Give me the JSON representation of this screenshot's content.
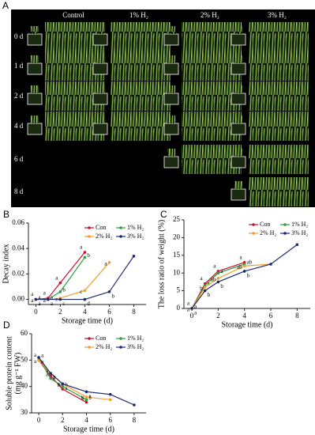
{
  "panel_labels": [
    "A",
    "B",
    "C",
    "D"
  ],
  "photo_grid": {
    "columns": [
      "Control",
      "1% H₂",
      "2% H₂",
      "3% H₂"
    ],
    "rows": [
      {
        "label": "0 d",
        "photos": [
          true,
          true,
          true,
          true
        ]
      },
      {
        "label": "1 d",
        "photos": [
          true,
          true,
          true,
          true
        ]
      },
      {
        "label": "2 d",
        "photos": [
          true,
          true,
          true,
          true
        ]
      },
      {
        "label": "4 d",
        "photos": [
          true,
          true,
          true,
          true
        ]
      },
      {
        "label": "6 d",
        "photos": [
          false,
          false,
          true,
          true
        ]
      },
      {
        "label": "8 d",
        "photos": [
          false,
          false,
          false,
          true
        ]
      }
    ]
  },
  "chart_data": [
    {
      "type": "line",
      "ylabel": "Decay index",
      "xlabel": "Storage time (d)",
      "xlim": [
        -0.6,
        9
      ],
      "ylim": [
        -0.004,
        0.06
      ],
      "xticks": [
        0,
        2,
        4,
        6,
        8
      ],
      "yticks": [
        {
          "value": 0,
          "label": "0.00"
        },
        {
          "value": 0.02,
          "label": "0.02"
        },
        {
          "value": 0.04,
          "label": "0.04"
        },
        {
          "value": 0.06,
          "label": "0.06"
        }
      ],
      "series": [
        {
          "name": "Con",
          "color": "#c8102e",
          "x": [
            0,
            1,
            2,
            4
          ],
          "values": [
            0,
            0.001,
            0.013,
            0.037
          ],
          "letters": [
            "a",
            "a",
            "a",
            "a"
          ]
        },
        {
          "name": "1% H₂",
          "color": "#2e9e3e",
          "x": [
            0,
            1,
            2,
            4
          ],
          "values": [
            0,
            0,
            0.006,
            0.033
          ],
          "letters": [
            "a",
            "a",
            "b",
            "b"
          ]
        },
        {
          "name": "2% H₂",
          "color": "#f0a030",
          "x": [
            0,
            1,
            2,
            4,
            6
          ],
          "values": [
            0,
            0,
            0.001,
            0.007,
            0.029
          ],
          "letters": [
            "a",
            "a",
            "c",
            "c",
            "a"
          ]
        },
        {
          "name": "3% H₂",
          "color": "#1f2a6e",
          "x": [
            0,
            1,
            2,
            4,
            6,
            8
          ],
          "values": [
            0,
            0,
            0,
            0,
            0.006,
            0.034
          ],
          "letters": [
            "a",
            "a",
            "c",
            "d",
            "b",
            null
          ]
        }
      ]
    },
    {
      "type": "line",
      "ylabel": "The loss ratio of weight (%)",
      "xlabel": "Storage time (d)",
      "xlim": [
        -0.6,
        9
      ],
      "ylim": [
        0,
        25
      ],
      "xticks": [
        0,
        2,
        4,
        6,
        8
      ],
      "yticks": [
        0,
        5,
        10,
        15,
        20,
        25
      ],
      "series": [
        {
          "name": "Con",
          "color": "#c8102e",
          "x": [
            0,
            1,
            2,
            4
          ],
          "values": [
            0,
            7,
            10.5,
            13
          ],
          "letters": [
            "a",
            "a",
            "a",
            "a"
          ]
        },
        {
          "name": "1% H₂",
          "color": "#2e9e3e",
          "x": [
            0,
            1,
            2,
            4
          ],
          "values": [
            0,
            6.5,
            10,
            12.5
          ],
          "letters": [
            "a",
            "a",
            "a",
            "ab"
          ]
        },
        {
          "name": "2% H₂",
          "color": "#f0a030",
          "x": [
            0,
            1,
            2,
            4,
            6
          ],
          "values": [
            0,
            6,
            8.5,
            12,
            12.5
          ],
          "letters": [
            "a",
            "b",
            "ab",
            "ab",
            null
          ]
        },
        {
          "name": "3% H₂",
          "color": "#1f2a6e",
          "x": [
            0,
            1,
            2,
            4,
            6,
            8
          ],
          "values": [
            0,
            5,
            7.5,
            10.5,
            12.5,
            18
          ],
          "letters": [
            "a",
            "b",
            "b",
            "b",
            null,
            null
          ]
        }
      ]
    },
    {
      "type": "line",
      "ylabel": [
        "Soluble protein content",
        "(mg g⁻¹ FW)"
      ],
      "xlabel": "Storage time (d)",
      "xlim": [
        -0.6,
        9
      ],
      "ylim": [
        30,
        60
      ],
      "xticks": [
        0,
        2,
        4,
        6,
        8
      ],
      "yticks": [
        30,
        40,
        50,
        60
      ],
      "series": [
        {
          "name": "Con",
          "color": "#c8102e",
          "x": [
            0,
            1,
            2,
            4
          ],
          "values": [
            50,
            44,
            39,
            34
          ],
          "letters": [
            "a",
            "a",
            "c",
            "c"
          ]
        },
        {
          "name": "1% H₂",
          "color": "#2e9e3e",
          "x": [
            0,
            1,
            2,
            4
          ],
          "values": [
            51,
            43,
            40,
            35
          ],
          "letters": [
            "a",
            "b",
            "b",
            "b"
          ]
        },
        {
          "name": "2% H₂",
          "color": "#f0a030",
          "x": [
            0,
            1,
            2,
            4,
            6
          ],
          "values": [
            50,
            45,
            41,
            36,
            35
          ],
          "letters": [
            "a",
            "a",
            "b",
            "b",
            null
          ]
        },
        {
          "name": "3% H₂",
          "color": "#1f2a6e",
          "x": [
            0,
            1,
            2,
            4,
            6,
            8
          ],
          "values": [
            51,
            45,
            41,
            38,
            37,
            33
          ],
          "letters": [
            "a",
            "a",
            "a",
            "a",
            null,
            null
          ]
        }
      ]
    }
  ]
}
